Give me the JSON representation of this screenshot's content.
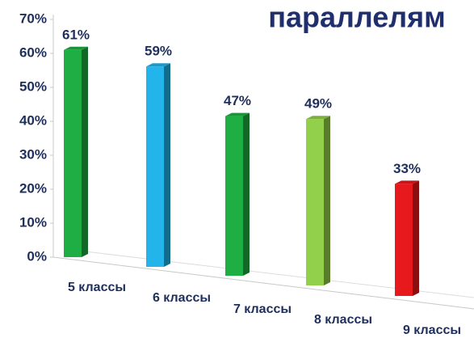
{
  "chart_data": {
    "type": "bar",
    "title": "параллелям",
    "categories": [
      "5 классы",
      "6 классы",
      "7 классы",
      "8 классы",
      "9 классы"
    ],
    "series": [
      {
        "name": null,
        "colors": [
          "#1fae43",
          "#22b4ea",
          "#1fae43",
          "#92cf4a",
          "#e8191c"
        ],
        "values": [
          61,
          59,
          47,
          49,
          33
        ],
        "value_labels": [
          "61%",
          "59%",
          "47%",
          "49%",
          "33%"
        ]
      }
    ],
    "ylim": [
      0,
      70
    ],
    "yticks": [
      {
        "value": 0,
        "label": "0%"
      },
      {
        "value": 10,
        "label": "10%"
      },
      {
        "value": 20,
        "label": "20%"
      },
      {
        "value": 30,
        "label": "30%"
      },
      {
        "value": 40,
        "label": "40%"
      },
      {
        "value": 50,
        "label": "50%"
      },
      {
        "value": 60,
        "label": "60%"
      },
      {
        "value": 70,
        "label": "70%"
      }
    ]
  }
}
